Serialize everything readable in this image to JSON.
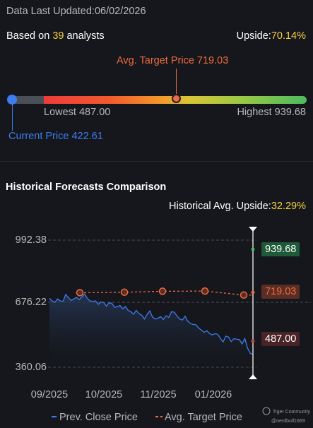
{
  "header": {
    "updated_label": "Data Last Updated:06/02/2026",
    "based_on_prefix": "Based on ",
    "analyst_count": "39",
    "based_on_suffix": " analysts",
    "upside_label": "Upside:",
    "upside_value": "70.14%"
  },
  "price_range": {
    "target_label": "Avg. Target Price 719.03",
    "lowest_label": "Lowest 487.00",
    "highest_label": "Highest 939.68",
    "current_label": "Current Price 422.61",
    "lowest": 487.0,
    "highest": 939.68,
    "target": 719.03,
    "current": 422.61
  },
  "comparison": {
    "title": "Historical Forecasts Comparison",
    "upside_label": "Historical Avg. Upside:",
    "upside_value": "32.29%"
  },
  "chart_data": {
    "type": "line",
    "y_ticks": [
      "992.38",
      "676.22",
      "360.06"
    ],
    "ylim": [
      360.06,
      992.38
    ],
    "x_ticks": [
      "09/2025",
      "10/2025",
      "11/2025",
      "01/2026"
    ],
    "series": [
      {
        "name": "Prev. Close Price",
        "color": "#3d7df0",
        "values": [
          703,
          690,
          683,
          700,
          690,
          688,
          722,
          706,
          692,
          700,
          708,
          697,
          710,
          725,
          702,
          690,
          688,
          690,
          673,
          685,
          682,
          664,
          681,
          678,
          658,
          661,
          667,
          651,
          662,
          643,
          636,
          624,
          643,
          627,
          619,
          600,
          623,
          640,
          609,
          600,
          604,
          612,
          598,
          616,
          608,
          636,
          634,
          615,
          600,
          595,
          614,
          589,
          577,
          573,
          571,
          555,
          545,
          534,
          542,
          528,
          521,
          527,
          524,
          503,
          486,
          515,
          510,
          488,
          502,
          499,
          498,
          476,
          503,
          456,
          430,
          422.61
        ]
      },
      {
        "name": "Avg. Target Price",
        "color": "#ee6a3f",
        "values": [
          731,
          733,
          738,
          739,
          719.03
        ]
      }
    ],
    "end_labels": {
      "highest": "939.68",
      "target": "719.03",
      "lowest": "487.00"
    }
  },
  "legend": {
    "series1": "Prev. Close Price",
    "series2": "Avg. Target Price"
  },
  "watermark": {
    "brand": "Tiger Community",
    "handle": "@nerdbull1669"
  }
}
